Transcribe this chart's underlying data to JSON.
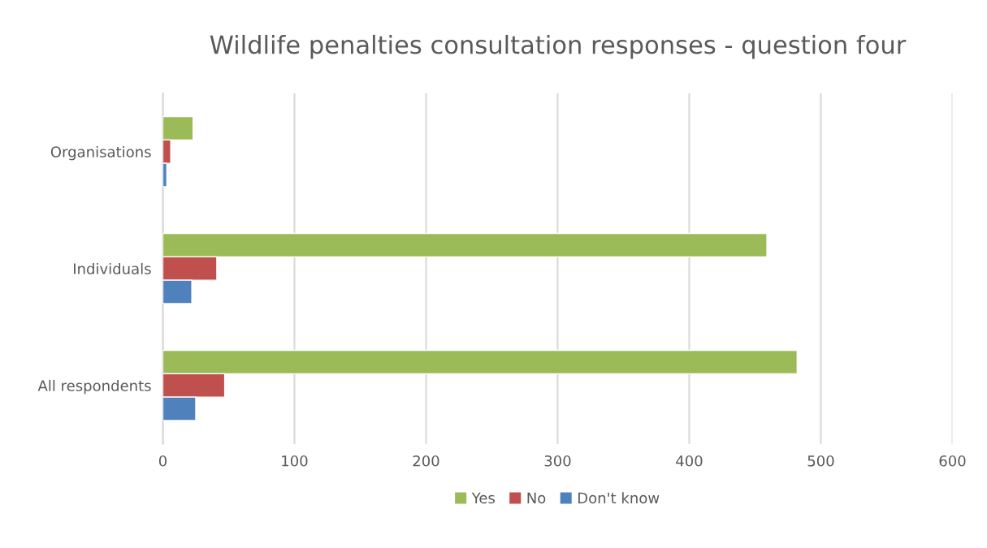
{
  "chart_data": {
    "type": "bar",
    "orientation": "horizontal",
    "title": "Wildlife penalties consultation responses - question four",
    "categories": [
      "Organisations",
      "Individuals",
      "All respondents"
    ],
    "series": [
      {
        "name": "Yes",
        "color": "#9bbb59",
        "values": [
          23,
          459,
          482
        ]
      },
      {
        "name": "No",
        "color": "#c0504d",
        "values": [
          6,
          41,
          47
        ]
      },
      {
        "name": "Don't know",
        "color": "#4f81bd",
        "values": [
          3,
          22,
          25
        ]
      }
    ],
    "xlim": [
      0,
      600
    ],
    "xticks": [
      0,
      100,
      200,
      300,
      400,
      500,
      600
    ],
    "grid": "x",
    "legend": "bottom"
  }
}
